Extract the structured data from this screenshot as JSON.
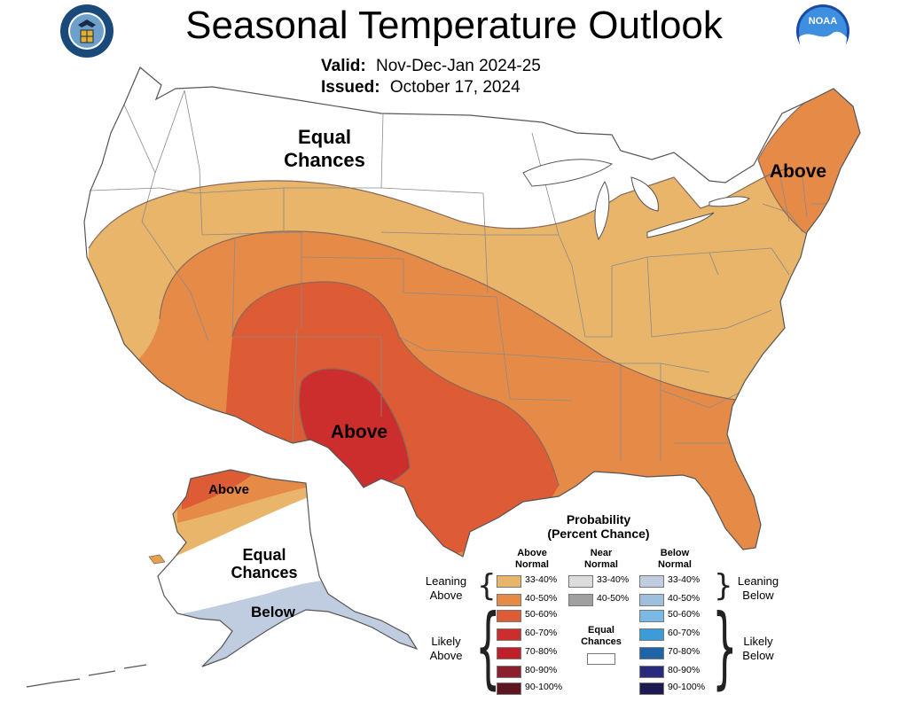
{
  "header": {
    "title": "Seasonal Temperature Outlook",
    "valid_label": "Valid:",
    "valid_value": "Nov-Dec-Jan 2024-25",
    "issued_label": "Issued:",
    "issued_value": "October 17, 2024"
  },
  "logos": {
    "left": "department-of-commerce-seal",
    "right": "noaa-logo",
    "noaa_text": "NOAA"
  },
  "map_labels": {
    "conus_equal": [
      "Equal",
      "Chances"
    ],
    "northeast_above": "Above",
    "southwest_above": "Above",
    "alaska_above": "Above",
    "alaska_equal": [
      "Equal",
      "Chances"
    ],
    "alaska_below": "Below"
  },
  "colors": {
    "above_33_40": "#e8b56a",
    "above_40_50": "#e68a48",
    "above_50_60": "#dd5b35",
    "above_60_70": "#cc2d2d",
    "above_70_80": "#c01e2a",
    "above_80_90": "#8c1f2e",
    "above_90_100": "#5e1620",
    "near_33_40": "#dcdcdc",
    "near_40_50": "#a0a0a0",
    "below_33_40": "#c0cce0",
    "below_40_50": "#9ec0dc",
    "below_50_60": "#7ab8e6",
    "below_60_70": "#3d9cd8",
    "below_70_80": "#1f64a8",
    "below_80_90": "#2a2a7a",
    "below_90_100": "#1c1a50",
    "equal": "#ffffff"
  },
  "legend": {
    "title_line1": "Probability",
    "title_line2": "(Percent Chance)",
    "col_above": [
      "Above",
      "Normal"
    ],
    "col_near": [
      "Near",
      "Normal"
    ],
    "col_below": [
      "Below",
      "Normal"
    ],
    "above_items": [
      "33-40%",
      "40-50%",
      "50-60%",
      "60-70%",
      "70-80%",
      "80-90%",
      "90-100%"
    ],
    "near_items": [
      "33-40%",
      "40-50%"
    ],
    "below_items": [
      "33-40%",
      "40-50%",
      "50-60%",
      "60-70%",
      "70-80%",
      "80-90%",
      "90-100%"
    ],
    "equal_label": [
      "Equal",
      "Chances"
    ],
    "leaning_above": [
      "Leaning",
      "Above"
    ],
    "likely_above": [
      "Likely",
      "Above"
    ],
    "leaning_below": [
      "Leaning",
      "Below"
    ],
    "likely_below": [
      "Likely",
      "Below"
    ]
  }
}
